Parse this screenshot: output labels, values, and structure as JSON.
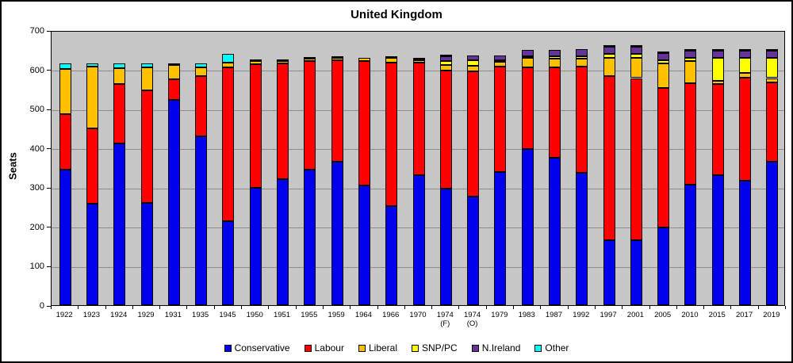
{
  "title": "United Kingdom",
  "chart_data": {
    "type": "bar",
    "stacked": true,
    "title": "United Kingdom",
    "xlabel": "",
    "ylabel": "Seats",
    "ylim": [
      0,
      700
    ],
    "ytick_interval": 100,
    "grid": true,
    "legend_position": "bottom",
    "plot_bg_color": "#C6C6C6",
    "gridline_color": "#8C8C8C",
    "categories": [
      "1922",
      "1923",
      "1924",
      "1929",
      "1931",
      "1935",
      "1945",
      "1950",
      "1951",
      "1955",
      "1959",
      "1964",
      "1966",
      "1970",
      "1974\n(F)",
      "1974\n(O)",
      "1979",
      "1983",
      "1987",
      "1992",
      "1997",
      "2001",
      "2005",
      "2010",
      "2015",
      "2017",
      "2019"
    ],
    "series": [
      {
        "name": "Conservative",
        "color": "#0000EE",
        "values": [
          344,
          258,
          412,
          260,
          522,
          430,
          213,
          298,
          321,
          344,
          365,
          304,
          253,
          330,
          297,
          277,
          339,
          397,
          376,
          336,
          165,
          166,
          198,
          306,
          330,
          317,
          365
        ]
      },
      {
        "name": "Labour",
        "color": "#FF0000",
        "values": [
          142,
          191,
          151,
          287,
          52,
          154,
          393,
          315,
          295,
          277,
          258,
          317,
          364,
          288,
          301,
          319,
          269,
          209,
          229,
          271,
          418,
          412,
          355,
          258,
          232,
          262,
          202
        ]
      },
      {
        "name": "Liberal",
        "color": "#FFC000",
        "values": [
          115,
          158,
          40,
          59,
          37,
          21,
          12,
          9,
          6,
          6,
          6,
          9,
          12,
          6,
          14,
          13,
          11,
          23,
          22,
          20,
          46,
          52,
          62,
          57,
          8,
          12,
          11
        ]
      },
      {
        "name": "SNP/PC",
        "color": "#FFFF00",
        "values": [
          0,
          0,
          0,
          0,
          0,
          0,
          0,
          0,
          0,
          0,
          0,
          0,
          0,
          1,
          9,
          14,
          4,
          4,
          6,
          7,
          10,
          9,
          9,
          9,
          59,
          39,
          52
        ]
      },
      {
        "name": "N.Ireland",
        "color": "#663399",
        "values": [
          0,
          0,
          0,
          0,
          0,
          0,
          0,
          0,
          0,
          0,
          0,
          0,
          0,
          0,
          12,
          12,
          12,
          17,
          17,
          17,
          18,
          18,
          18,
          18,
          18,
          18,
          18
        ]
      },
      {
        "name": "Other",
        "color": "#00FFFF",
        "values": [
          14,
          8,
          12,
          9,
          4,
          10,
          22,
          3,
          3,
          3,
          1,
          0,
          1,
          5,
          2,
          0,
          0,
          0,
          0,
          0,
          2,
          2,
          4,
          2,
          3,
          2,
          2
        ]
      }
    ]
  }
}
